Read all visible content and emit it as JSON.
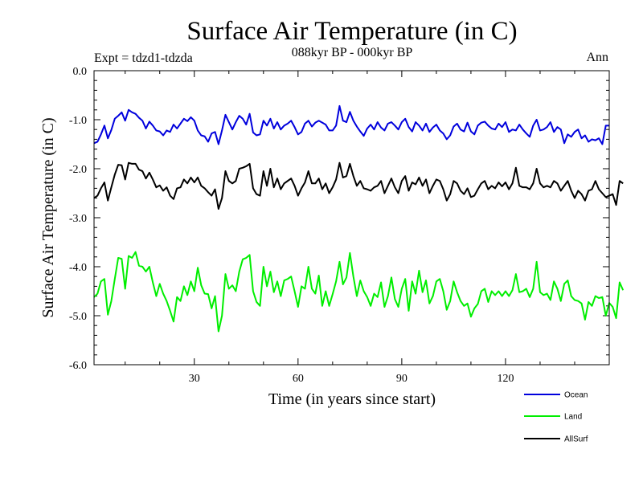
{
  "chart_data": {
    "type": "line",
    "title": "Surface Air Temperature (in C)",
    "subtitle": "088kyr BP - 000kyr BP",
    "experiment_label": "Expt = tdzd1-tdzda",
    "period_label": "Ann",
    "xlabel": "Time (in years since start)",
    "ylabel": "Surface Air Temperature (in C)",
    "xlim": [
      1,
      150
    ],
    "ylim": [
      -6.0,
      0.0
    ],
    "x_ticks": [
      30,
      60,
      90,
      120
    ],
    "x_tick_labels": [
      "30",
      "60",
      "90",
      "120"
    ],
    "y_ticks": [
      0.0,
      -1.0,
      -2.0,
      -3.0,
      -4.0,
      -5.0,
      -6.0
    ],
    "y_tick_labels": [
      "0.0",
      "-1.0",
      "-2.0",
      "-3.0",
      "-4.0",
      "-5.0",
      "-6.0"
    ],
    "grid": false,
    "legend_position": "bottom-right",
    "x_start": 1,
    "x_step": 1,
    "series": [
      {
        "name": "Ocean",
        "color": "#0000dd",
        "values": [
          -1.48,
          -1.45,
          -1.3,
          -1.12,
          -1.38,
          -1.21,
          -0.98,
          -0.92,
          -0.85,
          -1.02,
          -0.8,
          -0.85,
          -0.88,
          -0.96,
          -1.02,
          -1.18,
          -1.04,
          -1.12,
          -1.22,
          -1.24,
          -1.32,
          -1.22,
          -1.25,
          -1.1,
          -1.18,
          -1.08,
          -0.98,
          -1.03,
          -0.95,
          -1.02,
          -1.22,
          -1.32,
          -1.34,
          -1.45,
          -1.28,
          -1.25,
          -1.5,
          -1.22,
          -0.9,
          -1.05,
          -1.2,
          -1.05,
          -0.92,
          -0.98,
          -1.1,
          -0.88,
          -1.26,
          -1.32,
          -1.3,
          -1.02,
          -1.12,
          -0.98,
          -1.18,
          -1.05,
          -1.2,
          -1.12,
          -1.08,
          -1.02,
          -1.15,
          -1.3,
          -1.25,
          -1.08,
          -1.02,
          -1.14,
          -1.06,
          -1.02,
          -1.06,
          -1.1,
          -1.22,
          -1.22,
          -1.12,
          -0.72,
          -1.02,
          -1.05,
          -0.84,
          -1.02,
          -1.14,
          -1.24,
          -1.33,
          -1.18,
          -1.1,
          -1.2,
          -1.05,
          -1.16,
          -1.22,
          -1.08,
          -1.05,
          -1.12,
          -1.2,
          -1.05,
          -0.98,
          -1.15,
          -1.24,
          -1.05,
          -1.12,
          -1.22,
          -1.08,
          -1.25,
          -1.16,
          -1.1,
          -1.22,
          -1.28,
          -1.4,
          -1.32,
          -1.14,
          -1.08,
          -1.2,
          -1.24,
          -1.06,
          -1.24,
          -1.3,
          -1.12,
          -1.06,
          -1.04,
          -1.12,
          -1.18,
          -1.2,
          -1.08,
          -1.15,
          -1.05,
          -1.25,
          -1.2,
          -1.22,
          -1.1,
          -1.2,
          -1.28,
          -1.35,
          -1.12,
          -1.0,
          -1.22,
          -1.2,
          -1.15,
          -1.05,
          -1.25,
          -1.15,
          -1.2,
          -1.48,
          -1.3,
          -1.35,
          -1.25,
          -1.2,
          -1.38,
          -1.32,
          -1.45,
          -1.4,
          -1.42,
          -1.38,
          -1.5,
          -1.12,
          -1.12
        ]
      },
      {
        "name": "Land",
        "color": "#00ee00",
        "values": [
          -4.62,
          -4.55,
          -4.3,
          -4.25,
          -4.98,
          -4.7,
          -4.25,
          -3.82,
          -3.84,
          -4.45,
          -3.78,
          -3.82,
          -3.7,
          -3.98,
          -4.0,
          -4.1,
          -4.0,
          -4.32,
          -4.6,
          -4.35,
          -4.55,
          -4.7,
          -4.9,
          -5.12,
          -4.62,
          -4.7,
          -4.4,
          -4.58,
          -4.3,
          -4.5,
          -4.02,
          -4.38,
          -4.55,
          -4.56,
          -4.85,
          -4.6,
          -5.32,
          -5.0,
          -4.15,
          -4.45,
          -4.38,
          -4.5,
          -4.1,
          -3.85,
          -3.82,
          -3.76,
          -4.5,
          -4.72,
          -4.8,
          -4.0,
          -4.4,
          -4.1,
          -4.52,
          -4.3,
          -4.6,
          -4.28,
          -4.25,
          -4.2,
          -4.5,
          -4.82,
          -4.4,
          -4.45,
          -4.0,
          -4.45,
          -4.55,
          -4.18,
          -4.8,
          -4.5,
          -4.8,
          -4.56,
          -4.3,
          -3.9,
          -4.36,
          -4.22,
          -3.72,
          -4.2,
          -4.6,
          -4.28,
          -4.5,
          -4.62,
          -4.8,
          -4.55,
          -4.62,
          -4.32,
          -4.82,
          -4.6,
          -4.22,
          -4.66,
          -4.82,
          -4.45,
          -4.25,
          -4.9,
          -4.3,
          -4.55,
          -4.08,
          -4.52,
          -4.28,
          -4.75,
          -4.6,
          -4.3,
          -4.25,
          -4.5,
          -4.88,
          -4.7,
          -4.3,
          -4.52,
          -4.7,
          -4.8,
          -4.75,
          -5.02,
          -4.85,
          -4.76,
          -4.5,
          -4.45,
          -4.72,
          -4.5,
          -4.58,
          -4.5,
          -4.6,
          -4.5,
          -4.6,
          -4.48,
          -4.15,
          -4.52,
          -4.5,
          -4.45,
          -4.62,
          -4.45,
          -3.9,
          -4.52,
          -4.58,
          -4.55,
          -4.68,
          -4.3,
          -4.45,
          -4.7,
          -4.35,
          -4.28,
          -4.6,
          -4.68,
          -4.7,
          -4.75,
          -5.08,
          -4.72,
          -4.8,
          -4.6,
          -4.64,
          -4.62,
          -5.0,
          -4.74,
          -4.82,
          -5.05,
          -4.32,
          -4.48
        ]
      },
      {
        "name": "AllSurf",
        "color": "#000000",
        "values": [
          -2.6,
          -2.55,
          -2.4,
          -2.28,
          -2.65,
          -2.38,
          -2.12,
          -1.92,
          -1.93,
          -2.22,
          -1.88,
          -1.9,
          -1.9,
          -2.02,
          -2.05,
          -2.2,
          -2.08,
          -2.22,
          -2.38,
          -2.34,
          -2.45,
          -2.38,
          -2.55,
          -2.62,
          -2.4,
          -2.38,
          -2.22,
          -2.3,
          -2.18,
          -2.28,
          -2.18,
          -2.35,
          -2.4,
          -2.48,
          -2.55,
          -2.42,
          -2.82,
          -2.6,
          -2.05,
          -2.25,
          -2.3,
          -2.25,
          -2.0,
          -1.98,
          -1.95,
          -1.9,
          -2.4,
          -2.52,
          -2.55,
          -2.05,
          -2.35,
          -2.0,
          -2.38,
          -2.2,
          -2.42,
          -2.3,
          -2.25,
          -2.2,
          -2.35,
          -2.55,
          -2.4,
          -2.28,
          -2.05,
          -2.3,
          -2.3,
          -2.2,
          -2.42,
          -2.3,
          -2.5,
          -2.38,
          -2.22,
          -1.88,
          -2.18,
          -2.15,
          -1.9,
          -2.15,
          -2.35,
          -2.25,
          -2.4,
          -2.42,
          -2.45,
          -2.38,
          -2.35,
          -2.25,
          -2.5,
          -2.35,
          -2.2,
          -2.38,
          -2.5,
          -2.25,
          -2.15,
          -2.45,
          -2.28,
          -2.32,
          -2.18,
          -2.35,
          -2.22,
          -2.5,
          -2.35,
          -2.22,
          -2.25,
          -2.42,
          -2.65,
          -2.52,
          -2.25,
          -2.3,
          -2.45,
          -2.52,
          -2.4,
          -2.58,
          -2.55,
          -2.42,
          -2.3,
          -2.25,
          -2.42,
          -2.35,
          -2.4,
          -2.28,
          -2.36,
          -2.28,
          -2.42,
          -2.3,
          -1.98,
          -2.35,
          -2.38,
          -2.38,
          -2.42,
          -2.3,
          -2.0,
          -2.3,
          -2.38,
          -2.35,
          -2.38,
          -2.25,
          -2.3,
          -2.45,
          -2.35,
          -2.25,
          -2.45,
          -2.6,
          -2.45,
          -2.52,
          -2.65,
          -2.45,
          -2.42,
          -2.25,
          -2.42,
          -2.5,
          -2.58,
          -2.55,
          -2.52,
          -2.74,
          -2.25,
          -2.3
        ]
      }
    ]
  }
}
